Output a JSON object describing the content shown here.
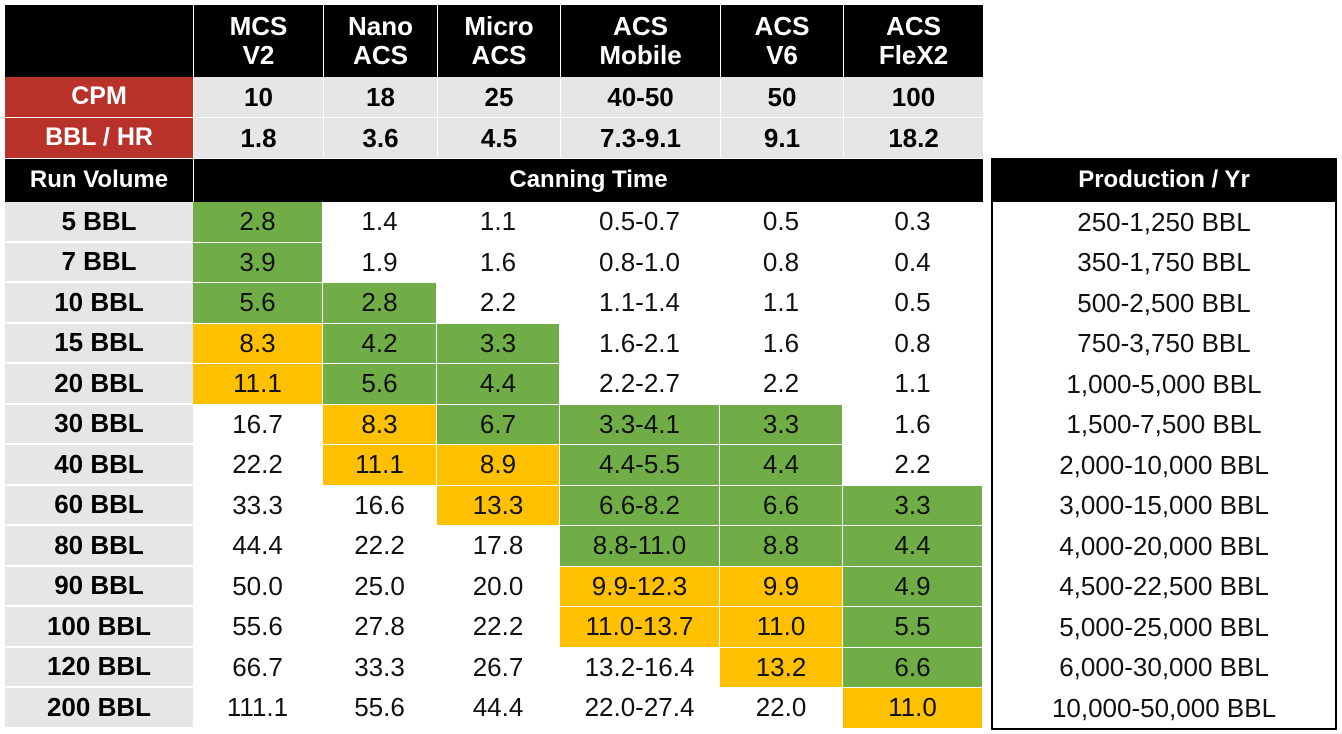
{
  "models": [
    [
      "MCS",
      "V2"
    ],
    [
      "Nano",
      "ACS"
    ],
    [
      "Micro",
      "ACS"
    ],
    [
      "ACS",
      "Mobile"
    ],
    [
      "ACS",
      "V6"
    ],
    [
      "ACS",
      "FleX2"
    ]
  ],
  "specs": [
    {
      "label": "CPM",
      "values": [
        "10",
        "18",
        "25",
        "40-50",
        "50",
        "100"
      ]
    },
    {
      "label": "BBL / HR",
      "values": [
        "1.8",
        "3.6",
        "4.5",
        "7.3-9.1",
        "9.1",
        "18.2"
      ]
    }
  ],
  "sections": {
    "run_volume": "Run Volume",
    "canning_time": "Canning Time",
    "production": "Production / Yr"
  },
  "colors": {
    "green": "#70ad47",
    "yellow": "#ffc000"
  },
  "rows": [
    {
      "volume": "5 BBL",
      "times": [
        "2.8",
        "1.4",
        "1.1",
        "0.5-0.7",
        "0.5",
        "0.3"
      ],
      "highlight": [
        "green",
        null,
        null,
        null,
        null,
        null
      ],
      "production": "250-1,250 BBL"
    },
    {
      "volume": "7 BBL",
      "times": [
        "3.9",
        "1.9",
        "1.6",
        "0.8-1.0",
        "0.8",
        "0.4"
      ],
      "highlight": [
        "green",
        null,
        null,
        null,
        null,
        null
      ],
      "production": "350-1,750 BBL"
    },
    {
      "volume": "10 BBL",
      "times": [
        "5.6",
        "2.8",
        "2.2",
        "1.1-1.4",
        "1.1",
        "0.5"
      ],
      "highlight": [
        "green",
        "green",
        null,
        null,
        null,
        null
      ],
      "production": "500-2,500 BBL"
    },
    {
      "volume": "15 BBL",
      "times": [
        "8.3",
        "4.2",
        "3.3",
        "1.6-2.1",
        "1.6",
        "0.8"
      ],
      "highlight": [
        "yellow",
        "green",
        "green",
        null,
        null,
        null
      ],
      "production": "750-3,750 BBL"
    },
    {
      "volume": "20 BBL",
      "times": [
        "11.1",
        "5.6",
        "4.4",
        "2.2-2.7",
        "2.2",
        "1.1"
      ],
      "highlight": [
        "yellow",
        "green",
        "green",
        null,
        null,
        null
      ],
      "production": "1,000-5,000 BBL"
    },
    {
      "volume": "30 BBL",
      "times": [
        "16.7",
        "8.3",
        "6.7",
        "3.3-4.1",
        "3.3",
        "1.6"
      ],
      "highlight": [
        null,
        "yellow",
        "green",
        "green",
        "green",
        null
      ],
      "production": "1,500-7,500 BBL"
    },
    {
      "volume": "40 BBL",
      "times": [
        "22.2",
        "11.1",
        "8.9",
        "4.4-5.5",
        "4.4",
        "2.2"
      ],
      "highlight": [
        null,
        "yellow",
        "yellow",
        "green",
        "green",
        null
      ],
      "production": "2,000-10,000 BBL"
    },
    {
      "volume": "60 BBL",
      "times": [
        "33.3",
        "16.6",
        "13.3",
        "6.6-8.2",
        "6.6",
        "3.3"
      ],
      "highlight": [
        null,
        null,
        "yellow",
        "green",
        "green",
        "green"
      ],
      "production": "3,000-15,000 BBL"
    },
    {
      "volume": "80 BBL",
      "times": [
        "44.4",
        "22.2",
        "17.8",
        "8.8-11.0",
        "8.8",
        "4.4"
      ],
      "highlight": [
        null,
        null,
        null,
        "green",
        "green",
        "green"
      ],
      "production": "4,000-20,000 BBL"
    },
    {
      "volume": "90 BBL",
      "times": [
        "50.0",
        "25.0",
        "20.0",
        "9.9-12.3",
        "9.9",
        "4.9"
      ],
      "highlight": [
        null,
        null,
        null,
        "yellow",
        "yellow",
        "green"
      ],
      "production": "4,500-22,500 BBL"
    },
    {
      "volume": "100 BBL",
      "times": [
        "55.6",
        "27.8",
        "22.2",
        "11.0-13.7",
        "11.0",
        "5.5"
      ],
      "highlight": [
        null,
        null,
        null,
        "yellow",
        "yellow",
        "green"
      ],
      "production": "5,000-25,000 BBL"
    },
    {
      "volume": "120 BBL",
      "times": [
        "66.7",
        "33.3",
        "26.7",
        "13.2-16.4",
        "13.2",
        "6.6"
      ],
      "highlight": [
        null,
        null,
        null,
        null,
        "yellow",
        "green"
      ],
      "production": "6,000-30,000 BBL"
    },
    {
      "volume": "200 BBL",
      "times": [
        "111.1",
        "55.6",
        "44.4",
        "22.0-27.4",
        "22.0",
        "11.0"
      ],
      "highlight": [
        null,
        null,
        null,
        null,
        null,
        "yellow"
      ],
      "production": "10,000-50,000 BBL"
    }
  ]
}
